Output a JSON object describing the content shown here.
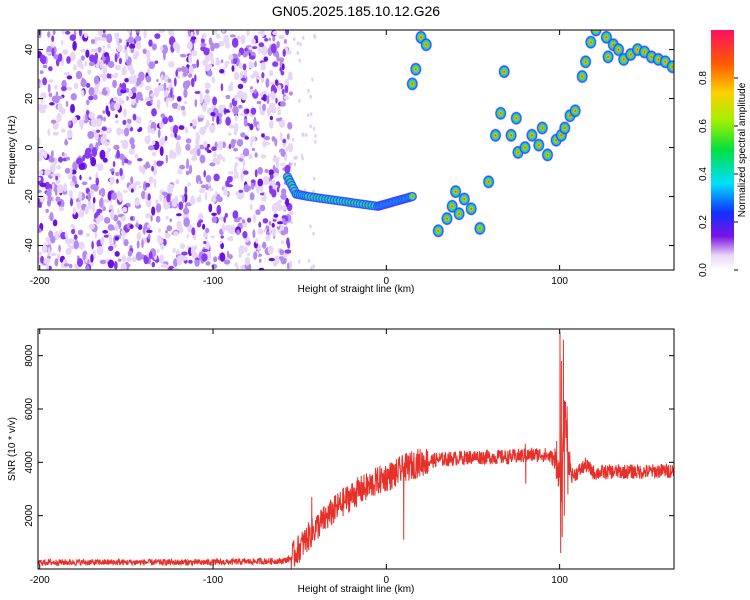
{
  "title": "GN05.2025.185.10.12.G26",
  "colors": {
    "snr_line": "#e8302a",
    "frame": "#000000",
    "background": "#ffffff"
  },
  "chart_data": [
    {
      "type": "heatmap",
      "xlabel": "Height of straight line (km)",
      "ylabel": "Frequency (Hz)",
      "xlim": [
        -201,
        166
      ],
      "ylim": [
        -50,
        48
      ],
      "xticks": [
        -200,
        -100,
        0,
        100
      ],
      "yticks": [
        -40,
        -20,
        0,
        20,
        40
      ],
      "colorbar": {
        "label": "Normalized spectral amplitude",
        "range": [
          0.0,
          1.0
        ],
        "ticks": [
          "0.0",
          "0.2",
          "0.4",
          "0.6",
          "0.8"
        ],
        "tick_values": [
          0.0,
          0.2,
          0.4,
          0.6,
          0.8
        ]
      },
      "noise_region": {
        "x": [
          -201,
          -55
        ],
        "y": [
          -50,
          48
        ]
      },
      "ridge_points": [
        {
          "x": -57,
          "y": -12
        },
        {
          "x": -52,
          "y": -19
        },
        {
          "x": -45,
          "y": -20
        },
        {
          "x": -35,
          "y": -21
        },
        {
          "x": -25,
          "y": -22
        },
        {
          "x": -15,
          "y": -23
        },
        {
          "x": -5,
          "y": -24
        },
        {
          "x": 0,
          "y": -23
        },
        {
          "x": 5,
          "y": -22
        },
        {
          "x": 10,
          "y": -21
        },
        {
          "x": 15,
          "y": -20
        }
      ],
      "clusters": [
        {
          "x": 15,
          "y": 26
        },
        {
          "x": 17,
          "y": 32
        },
        {
          "x": 20,
          "y": 45
        },
        {
          "x": 23,
          "y": 42
        },
        {
          "x": 30,
          "y": -34
        },
        {
          "x": 35,
          "y": -29
        },
        {
          "x": 38,
          "y": -24
        },
        {
          "x": 40,
          "y": -18
        },
        {
          "x": 42,
          "y": -27
        },
        {
          "x": 45,
          "y": -21
        },
        {
          "x": 49,
          "y": -25
        },
        {
          "x": 54,
          "y": -33
        },
        {
          "x": 59,
          "y": -14
        },
        {
          "x": 63,
          "y": 5
        },
        {
          "x": 66,
          "y": 14
        },
        {
          "x": 68,
          "y": 31
        },
        {
          "x": 72,
          "y": 5
        },
        {
          "x": 75,
          "y": 12
        },
        {
          "x": 76,
          "y": -2
        },
        {
          "x": 80,
          "y": 0
        },
        {
          "x": 84,
          "y": 5
        },
        {
          "x": 88,
          "y": 1
        },
        {
          "x": 90,
          "y": 8
        },
        {
          "x": 93,
          "y": -3
        },
        {
          "x": 98,
          "y": 3
        },
        {
          "x": 101,
          "y": 5
        },
        {
          "x": 103,
          "y": 8
        },
        {
          "x": 106,
          "y": 13
        },
        {
          "x": 109,
          "y": 15
        },
        {
          "x": 113,
          "y": 29
        },
        {
          "x": 115,
          "y": 35
        },
        {
          "x": 118,
          "y": 43
        },
        {
          "x": 121,
          "y": 48
        },
        {
          "x": 127,
          "y": 45
        },
        {
          "x": 128,
          "y": 37
        },
        {
          "x": 131,
          "y": 42
        },
        {
          "x": 134,
          "y": 40
        },
        {
          "x": 137,
          "y": 36
        },
        {
          "x": 141,
          "y": 38
        },
        {
          "x": 145,
          "y": 40
        },
        {
          "x": 149,
          "y": 39
        },
        {
          "x": 153,
          "y": 37
        },
        {
          "x": 157,
          "y": 36
        },
        {
          "x": 161,
          "y": 35
        },
        {
          "x": 165,
          "y": 33
        }
      ]
    },
    {
      "type": "line",
      "xlabel": "Height of straight line (km)",
      "ylabel": "SNR (10 * v/v)",
      "xlim": [
        -201,
        166
      ],
      "ylim": [
        0,
        9000
      ],
      "xticks": [
        -200,
        -100,
        0,
        100
      ],
      "yticks": [
        2000,
        4000,
        6000,
        8000
      ],
      "series": [
        {
          "x": [
            -201,
            -180,
            -160,
            -140,
            -120,
            -100,
            -80,
            -60,
            -55,
            -50,
            -45,
            -40,
            -35,
            -30,
            -25,
            -20,
            -15,
            -10,
            -5,
            0,
            5,
            10,
            15,
            20,
            25,
            30,
            40,
            50,
            60,
            70,
            80,
            90,
            95,
            98,
            100,
            101,
            103,
            105,
            107,
            110,
            115,
            120,
            130,
            140,
            150,
            166
          ],
          "values": [
            250,
            250,
            250,
            250,
            250,
            250,
            280,
            300,
            400,
            800,
            1200,
            1600,
            1900,
            2200,
            2500,
            2750,
            2950,
            3100,
            3300,
            3450,
            3550,
            3750,
            3900,
            4000,
            4050,
            4100,
            4150,
            4200,
            4200,
            4200,
            4250,
            4300,
            4200,
            4000,
            3500,
            3000,
            6000,
            4200,
            3500,
            3600,
            3900,
            3600,
            3650,
            3650,
            3650,
            3700
          ]
        }
      ]
    }
  ]
}
